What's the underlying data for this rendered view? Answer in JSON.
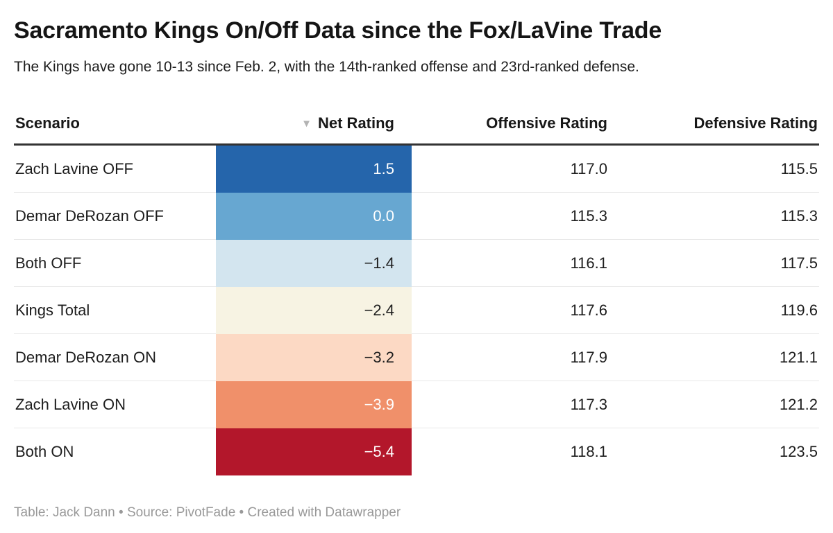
{
  "header": {
    "title": "Sacramento Kings On/Off Data since the Fox/LaVine Trade",
    "subtitle": "The Kings have gone 10-13 since Feb. 2, with the 14th-ranked offense and 23rd-ranked defense."
  },
  "table": {
    "columns": [
      {
        "label": "Scenario"
      },
      {
        "label": "Net Rating",
        "sort_indicator": "▼",
        "sort_direction": "desc"
      },
      {
        "label": "Offensive Rating"
      },
      {
        "label": "Defensive Rating"
      }
    ],
    "rows": [
      {
        "scenario": "Zach Lavine OFF",
        "net": "1.5",
        "off": "117.0",
        "def": "115.5",
        "net_bg": "#2565ab",
        "net_fg": "#ffffff"
      },
      {
        "scenario": "Demar DeRozan OFF",
        "net": "0.0",
        "off": "115.3",
        "def": "115.3",
        "net_bg": "#67a7d1",
        "net_fg": "#ffffff"
      },
      {
        "scenario": "Both OFF",
        "net": "−1.4",
        "off": "116.1",
        "def": "117.5",
        "net_bg": "#d3e5ef",
        "net_fg": "#1d1d1d"
      },
      {
        "scenario": "Kings Total",
        "net": "−2.4",
        "off": "117.6",
        "def": "119.6",
        "net_bg": "#f7f3e3",
        "net_fg": "#1d1d1d"
      },
      {
        "scenario": "Demar DeRozan ON",
        "net": "−3.2",
        "off": "117.9",
        "def": "121.1",
        "net_bg": "#fcd9c4",
        "net_fg": "#1d1d1d"
      },
      {
        "scenario": "Zach Lavine ON",
        "net": "−3.9",
        "off": "117.3",
        "def": "121.2",
        "net_bg": "#f0906a",
        "net_fg": "#ffffff"
      },
      {
        "scenario": "Both ON",
        "net": "−5.4",
        "off": "118.1",
        "def": "123.5",
        "net_bg": "#b3172b",
        "net_fg": "#ffffff"
      }
    ]
  },
  "footer": {
    "text": "Table: Jack Dann • Source: PivotFade • Created with Datawrapper"
  },
  "colors": {
    "header_border": "#333333",
    "row_divider": "#e8e8e8",
    "sort_arrow": "#b3b3b3",
    "footer_text": "#999999"
  },
  "chart_data": {
    "type": "table",
    "title": "Sacramento Kings On/Off Data since the Fox/LaVine Trade",
    "subtitle": "The Kings have gone 10-13 since Feb. 2, with the 14th-ranked offense and 23rd-ranked defense.",
    "columns": [
      "Scenario",
      "Net Rating",
      "Offensive Rating",
      "Defensive Rating"
    ],
    "rows": [
      [
        "Zach Lavine OFF",
        1.5,
        117.0,
        115.5
      ],
      [
        "Demar DeRozan OFF",
        0.0,
        115.3,
        115.3
      ],
      [
        "Both OFF",
        -1.4,
        116.1,
        117.5
      ],
      [
        "Kings Total",
        -2.4,
        117.6,
        119.6
      ],
      [
        "Demar DeRozan ON",
        -3.2,
        117.9,
        121.1
      ],
      [
        "Zach Lavine ON",
        -3.9,
        117.3,
        121.2
      ],
      [
        "Both ON",
        -5.4,
        118.1,
        123.5
      ]
    ],
    "heatmap_column": "Net Rating",
    "heatmap_palette": [
      "#2565ab",
      "#67a7d1",
      "#d3e5ef",
      "#f7f3e3",
      "#fcd9c4",
      "#f0906a",
      "#b3172b"
    ],
    "sort": {
      "column": "Net Rating",
      "direction": "desc"
    },
    "footer": "Table: Jack Dann • Source: PivotFade • Created with Datawrapper"
  }
}
